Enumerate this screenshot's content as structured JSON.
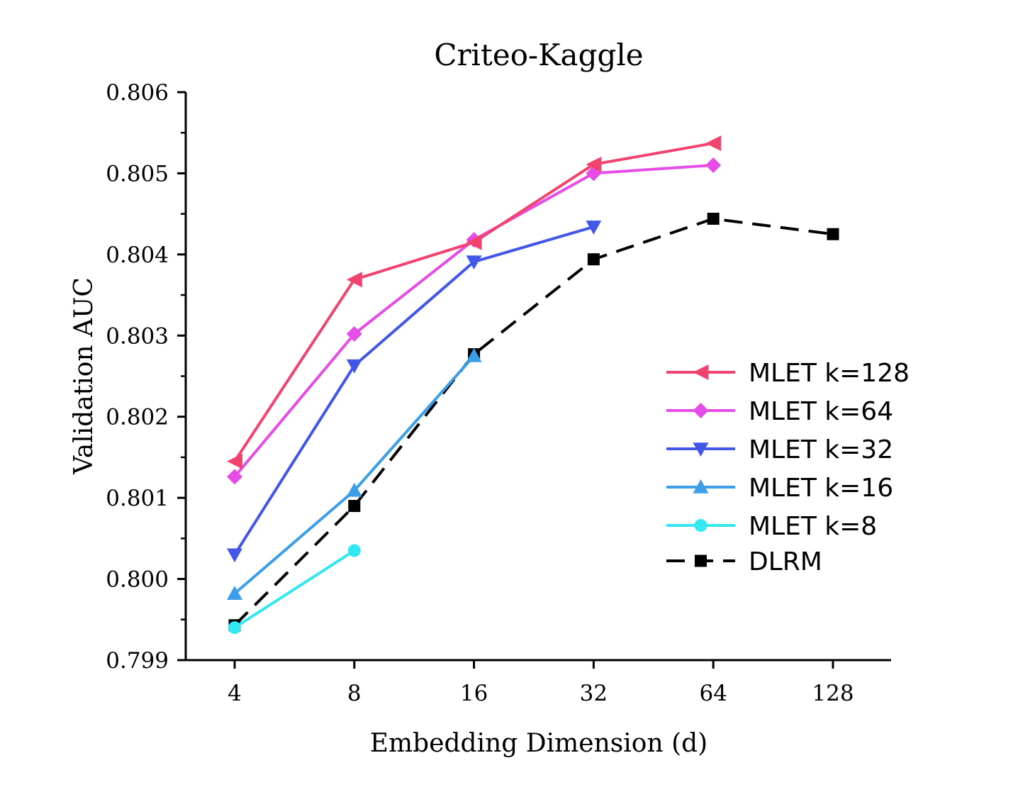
{
  "chart_data": {
    "type": "line",
    "title": "Criteo-Kaggle",
    "xlabel": "Embedding Dimension (d)",
    "ylabel": "Validation AUC",
    "categories": [
      "4",
      "8",
      "16",
      "32",
      "64",
      "128"
    ],
    "ylim": [
      0.799,
      0.806
    ],
    "yticks": [
      "0.799",
      "0.800",
      "0.801",
      "0.802",
      "0.803",
      "0.804",
      "0.805",
      "0.806"
    ],
    "grid": false,
    "legend_position": "right",
    "series": [
      {
        "name": "MLET k=128",
        "color": "#f0446e",
        "marker": "triangle-left",
        "dash": "solid",
        "values": [
          0.80145,
          0.80369,
          0.80415,
          0.80511,
          0.80537,
          null
        ]
      },
      {
        "name": "MLET k=64",
        "color": "#e64ce6",
        "marker": "diamond",
        "dash": "solid",
        "values": [
          0.80126,
          0.80302,
          0.80418,
          0.805,
          0.8051,
          null
        ]
      },
      {
        "name": "MLET k=32",
        "color": "#4256e8",
        "marker": "triangle-down",
        "dash": "solid",
        "values": [
          0.8003,
          0.80263,
          0.80391,
          0.80434,
          null,
          null
        ]
      },
      {
        "name": "MLET k=16",
        "color": "#3d9ee8",
        "marker": "triangle-up",
        "dash": "solid",
        "values": [
          0.79982,
          0.80109,
          0.80275,
          null,
          null,
          null
        ]
      },
      {
        "name": "MLET k=8",
        "color": "#33e8f0",
        "marker": "circle",
        "dash": "solid",
        "values": [
          0.7994,
          0.80035,
          null,
          null,
          null,
          null
        ]
      },
      {
        "name": "DLRM",
        "color": "#000000",
        "marker": "square",
        "dash": "dashed",
        "values": [
          0.79943,
          0.8009,
          0.80277,
          0.80394,
          0.80444,
          0.80425
        ]
      }
    ]
  }
}
